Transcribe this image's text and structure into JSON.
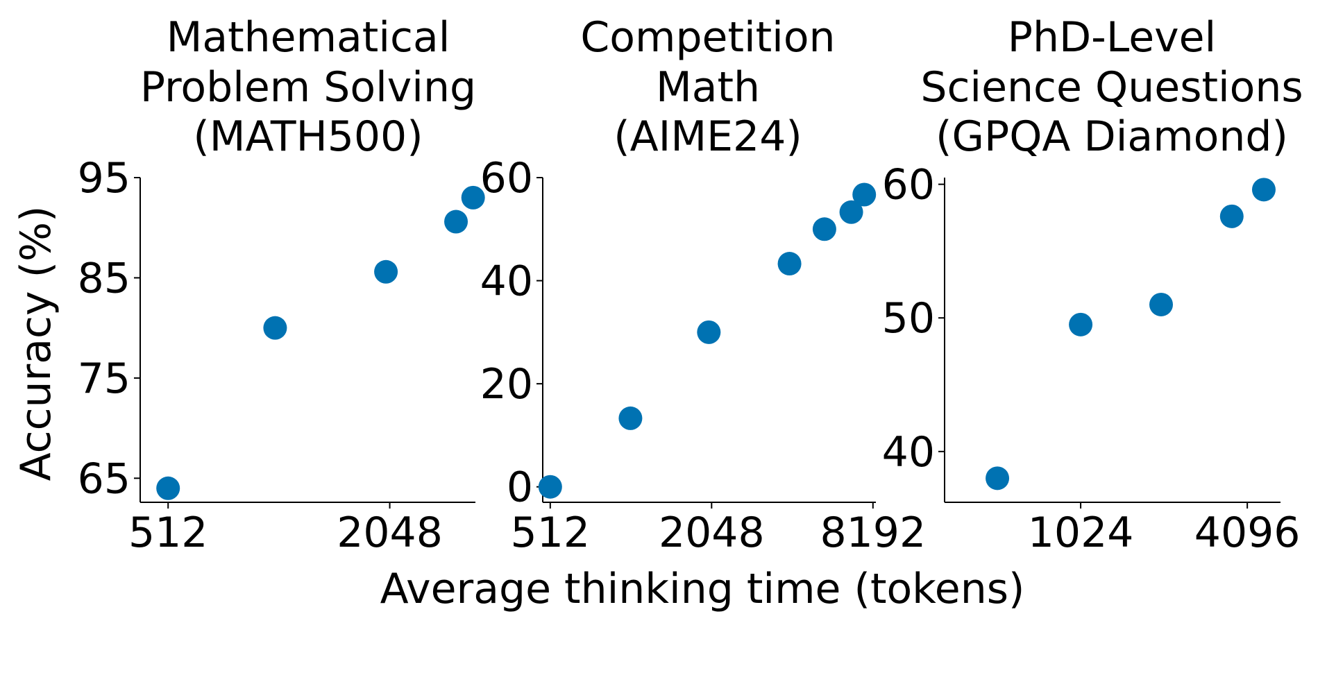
{
  "figure": {
    "ylabel": "Accuracy (%)",
    "xlabel": "Average thinking time (tokens)"
  },
  "chart_data": [
    {
      "type": "scatter",
      "title": "Mathematical\nProblem Solving\n(MATH500)",
      "xscale": "log2",
      "xticks": [
        512,
        2048
      ],
      "yticks": [
        65,
        75,
        85,
        95
      ],
      "xlim": [
        430,
        3500
      ],
      "ylim": [
        62.6,
        95
      ],
      "color": "#0072B2",
      "x": [
        512,
        1000,
        2000,
        3100,
        3450
      ],
      "y": [
        64.0,
        80.0,
        85.6,
        90.6,
        93.0
      ]
    },
    {
      "type": "scatter",
      "title": "Competition\nMath\n(AIME24)",
      "xscale": "log2",
      "xticks": [
        512,
        2048,
        8192
      ],
      "yticks": [
        0,
        20,
        40,
        60
      ],
      "xlim": [
        480,
        8400
      ],
      "ylim": [
        -3,
        60
      ],
      "color": "#0072B2",
      "x": [
        512,
        1020,
        2000,
        4000,
        5400,
        6800,
        7600
      ],
      "y": [
        0.0,
        13.3,
        30.0,
        43.3,
        50.0,
        53.3,
        56.7
      ]
    },
    {
      "type": "scatter",
      "title": "PhD-Level\nScience Questions\n(GPQA Diamond)",
      "xscale": "log2",
      "xticks": [
        1024,
        4096
      ],
      "yticks": [
        40,
        50,
        60
      ],
      "xlim": [
        330,
        5400
      ],
      "ylim": [
        36.2,
        60.5
      ],
      "color": "#0072B2",
      "x": [
        512,
        1024,
        2000,
        3600,
        4700
      ],
      "y": [
        38.0,
        49.5,
        51.0,
        57.6,
        59.6
      ]
    }
  ]
}
